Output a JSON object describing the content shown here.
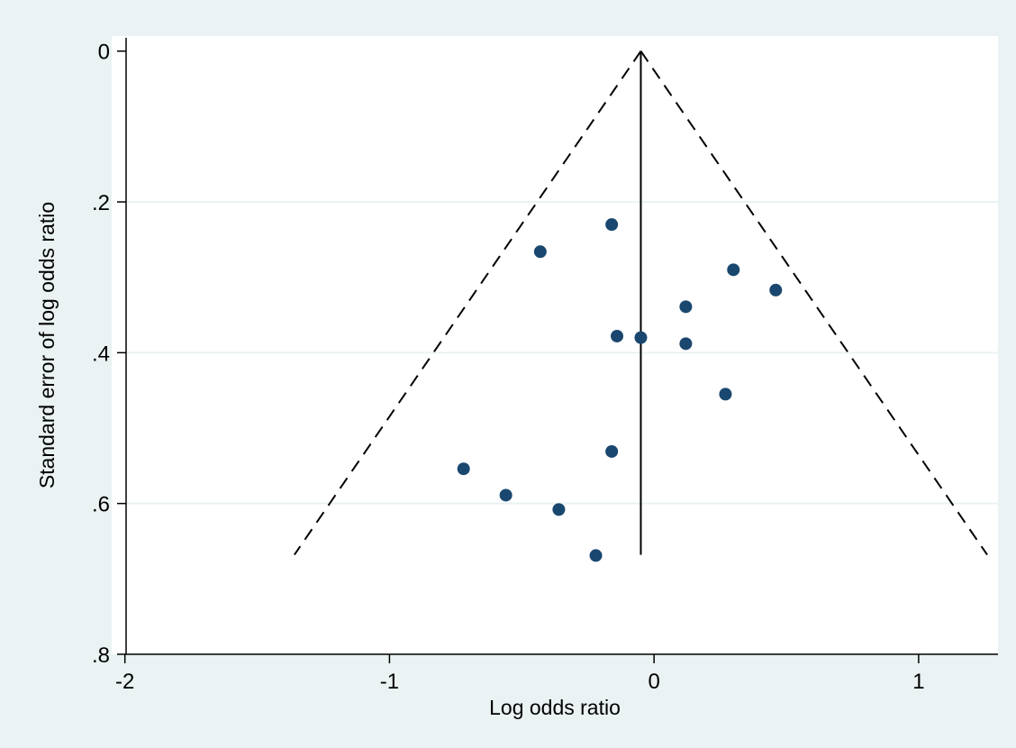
{
  "chart_data": {
    "type": "scatter",
    "xlabel": "Log odds ratio",
    "ylabel": "Standard error of log odds ratio",
    "xlim": [
      -2.05,
      1.3
    ],
    "ylim": [
      0.8,
      -0.02
    ],
    "y_reversed": true,
    "x_ticks": [
      {
        "value": -2,
        "label": "-2"
      },
      {
        "value": -1,
        "label": "-1"
      },
      {
        "value": 0,
        "label": "0"
      },
      {
        "value": 1,
        "label": "1"
      }
    ],
    "y_ticks": [
      {
        "value": 0,
        "label": "0"
      },
      {
        "value": 0.2,
        "label": ".2"
      },
      {
        "value": 0.4,
        "label": ".4"
      },
      {
        "value": 0.6,
        "label": ".6"
      },
      {
        "value": 0.8,
        "label": ".8"
      }
    ],
    "grid": "horizontal",
    "pooled_estimate": -0.05,
    "funnel_max_se": 0.668,
    "points": [
      {
        "x": -0.16,
        "y": 0.23
      },
      {
        "x": -0.43,
        "y": 0.266
      },
      {
        "x": 0.3,
        "y": 0.29
      },
      {
        "x": 0.46,
        "y": 0.317
      },
      {
        "x": 0.12,
        "y": 0.339
      },
      {
        "x": -0.14,
        "y": 0.378
      },
      {
        "x": -0.05,
        "y": 0.38
      },
      {
        "x": 0.12,
        "y": 0.388
      },
      {
        "x": 0.27,
        "y": 0.455
      },
      {
        "x": -0.16,
        "y": 0.531
      },
      {
        "x": -0.72,
        "y": 0.554
      },
      {
        "x": -0.56,
        "y": 0.589
      },
      {
        "x": -0.36,
        "y": 0.608
      },
      {
        "x": -0.22,
        "y": 0.669
      }
    ],
    "colors": {
      "background": "#eaf2f3",
      "plot_area": "#ffffff",
      "grid": "#eaf2f3",
      "point": "#1a476f",
      "line": "#000000"
    }
  }
}
